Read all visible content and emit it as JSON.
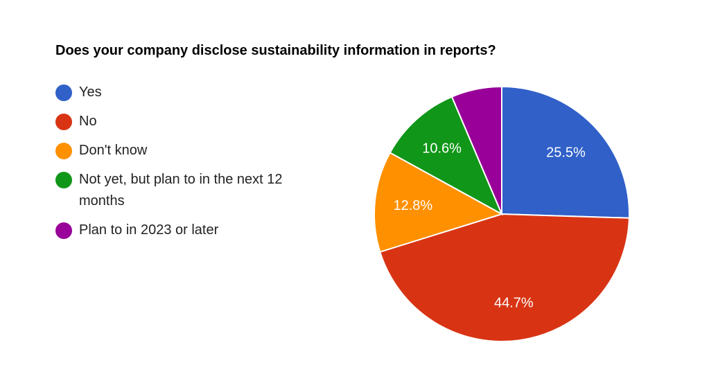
{
  "chart_data": {
    "type": "pie",
    "title": "Does your company disclose sustainability information in reports?",
    "legend_position": "left",
    "slices": [
      {
        "label": "Yes",
        "value": 25.5,
        "color": "#3060C8",
        "display": "25.5%"
      },
      {
        "label": "No",
        "value": 44.7,
        "color": "#D83414",
        "display": "44.7%"
      },
      {
        "label": "Don't know",
        "value": 12.8,
        "color": "#FF9000",
        "display": "12.8%"
      },
      {
        "label": "Not yet, but plan to in the next 12 months",
        "value": 10.6,
        "color": "#109618",
        "display": "10.6%"
      },
      {
        "label": "Plan to in 2023 or later",
        "value": 6.4,
        "color": "#990099",
        "display": ""
      }
    ]
  }
}
